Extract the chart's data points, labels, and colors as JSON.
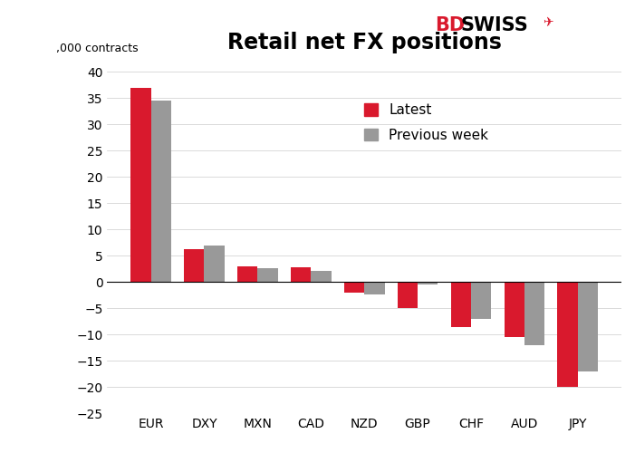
{
  "title": "Retail net FX positions",
  "ylabel": ",000 contracts",
  "categories": [
    "EUR",
    "DXY",
    "MXN",
    "CAD",
    "NZD",
    "GBP",
    "CHF",
    "AUD",
    "JPY"
  ],
  "latest": [
    37.0,
    6.2,
    3.0,
    2.8,
    -2.0,
    -5.0,
    -8.5,
    -10.5,
    -20.0
  ],
  "previous_week": [
    34.5,
    7.0,
    2.7,
    2.2,
    -2.3,
    -0.5,
    -7.0,
    -12.0,
    -17.0
  ],
  "latest_color": "#d9192d",
  "previous_color": "#999999",
  "background_color": "#ffffff",
  "ylim": [
    -25,
    42
  ],
  "yticks": [
    -25,
    -20,
    -15,
    -10,
    -5,
    0,
    5,
    10,
    15,
    20,
    25,
    30,
    35,
    40
  ],
  "legend_labels": [
    "Latest",
    "Previous week"
  ],
  "title_fontsize": 17,
  "tick_fontsize": 10,
  "bar_width": 0.38,
  "bd_color": "#d9192d",
  "swiss_color": "#000000"
}
